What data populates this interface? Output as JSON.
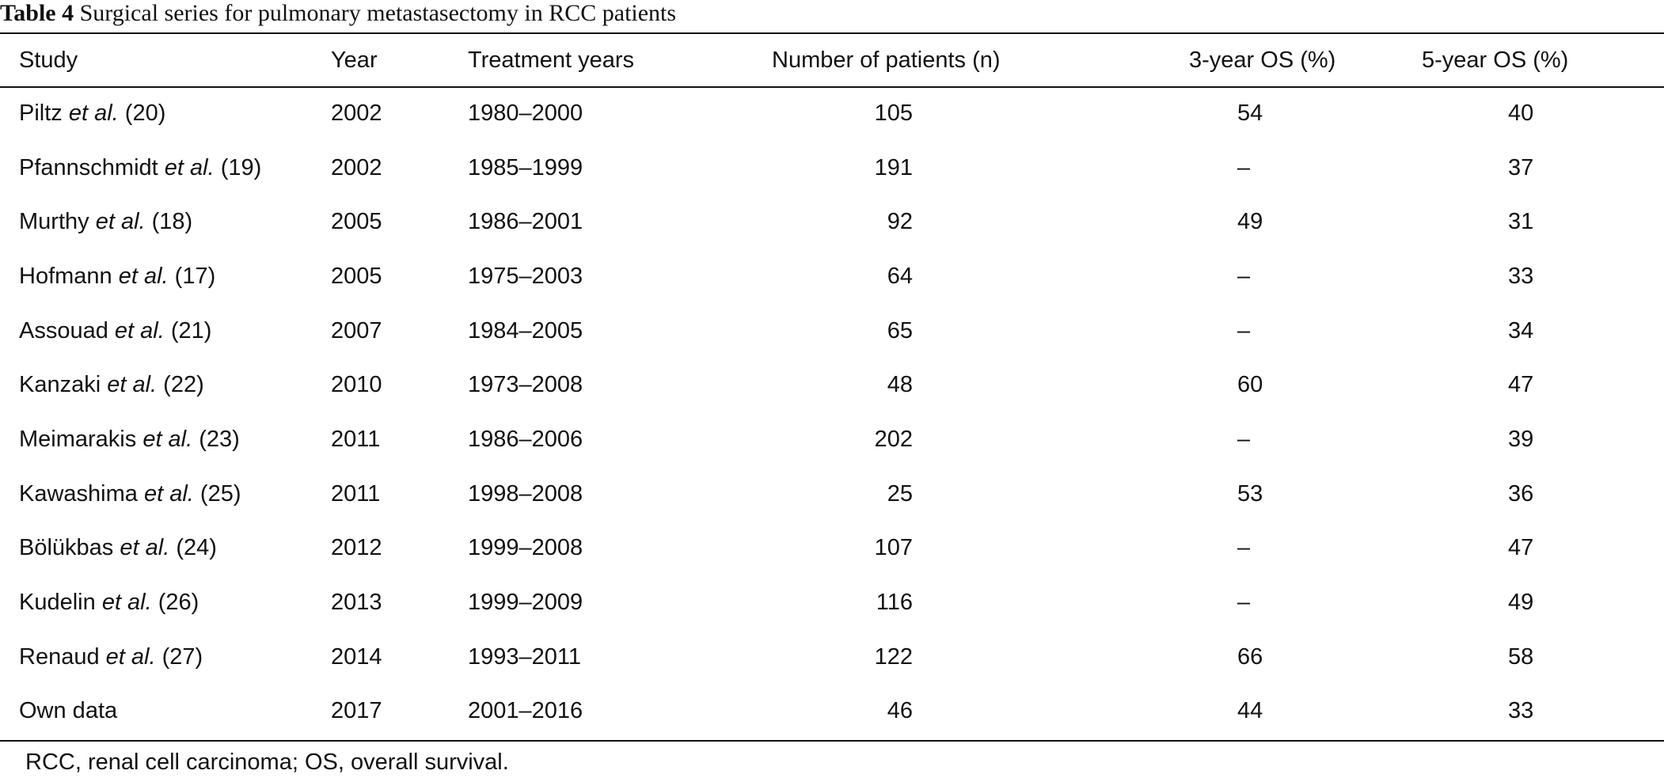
{
  "caption": {
    "label": "Table 4",
    "text": "Surgical series for pulmonary metastasectomy in RCC patients"
  },
  "headers": {
    "study": "Study",
    "year": "Year",
    "treatment_years": "Treatment years",
    "patients": "Number of patients (n)",
    "os3": "3-year OS (%)",
    "os5": "5-year OS (%)"
  },
  "rows": [
    {
      "author": "Piltz",
      "etal": "et al.",
      "ref": "(20)",
      "year": "2002",
      "treatment_years": "1980–2000",
      "patients": "105",
      "os3": "54",
      "os5": "40"
    },
    {
      "author": "Pfannschmidt",
      "etal": "et al.",
      "ref": "(19)",
      "year": "2002",
      "treatment_years": "1985–1999",
      "patients": "191",
      "os3": "–",
      "os5": "37"
    },
    {
      "author": "Murthy",
      "etal": "et al.",
      "ref": "(18)",
      "year": "2005",
      "treatment_years": "1986–2001",
      "patients": "92",
      "os3": "49",
      "os5": "31"
    },
    {
      "author": "Hofmann",
      "etal": "et al.",
      "ref": "(17)",
      "year": "2005",
      "treatment_years": "1975–2003",
      "patients": "64",
      "os3": "–",
      "os5": "33"
    },
    {
      "author": "Assouad",
      "etal": "et al.",
      "ref": "(21)",
      "year": "2007",
      "treatment_years": "1984–2005",
      "patients": "65",
      "os3": "–",
      "os5": "34"
    },
    {
      "author": "Kanzaki",
      "etal": "et al.",
      "ref": "(22)",
      "year": "2010",
      "treatment_years": "1973–2008",
      "patients": "48",
      "os3": "60",
      "os5": "47"
    },
    {
      "author": "Meimarakis",
      "etal": "et al.",
      "ref": "(23)",
      "year": "2011",
      "treatment_years": "1986–2006",
      "patients": "202",
      "os3": "–",
      "os5": "39"
    },
    {
      "author": "Kawashima",
      "etal": "et al.",
      "ref": "(25)",
      "year": "2011",
      "treatment_years": "1998–2008",
      "patients": "25",
      "os3": "53",
      "os5": "36"
    },
    {
      "author": "Bölükbas",
      "etal": "et al.",
      "ref": "(24)",
      "year": "2012",
      "treatment_years": "1999–2008",
      "patients": "107",
      "os3": "–",
      "os5": "47"
    },
    {
      "author": "Kudelin",
      "etal": "et al.",
      "ref": "(26)",
      "year": "2013",
      "treatment_years": "1999–2009",
      "patients": "116",
      "os3": "–",
      "os5": "49"
    },
    {
      "author": "Renaud",
      "etal": "et al.",
      "ref": "(27)",
      "year": "2014",
      "treatment_years": "1993–2011",
      "patients": "122",
      "os3": "66",
      "os5": "58"
    },
    {
      "author": "Own data",
      "etal": "",
      "ref": "",
      "year": "2017",
      "treatment_years": "2001–2016",
      "patients": "46",
      "os3": "44",
      "os5": "33"
    }
  ],
  "footnote": "RCC, renal cell carcinoma; OS, overall survival."
}
